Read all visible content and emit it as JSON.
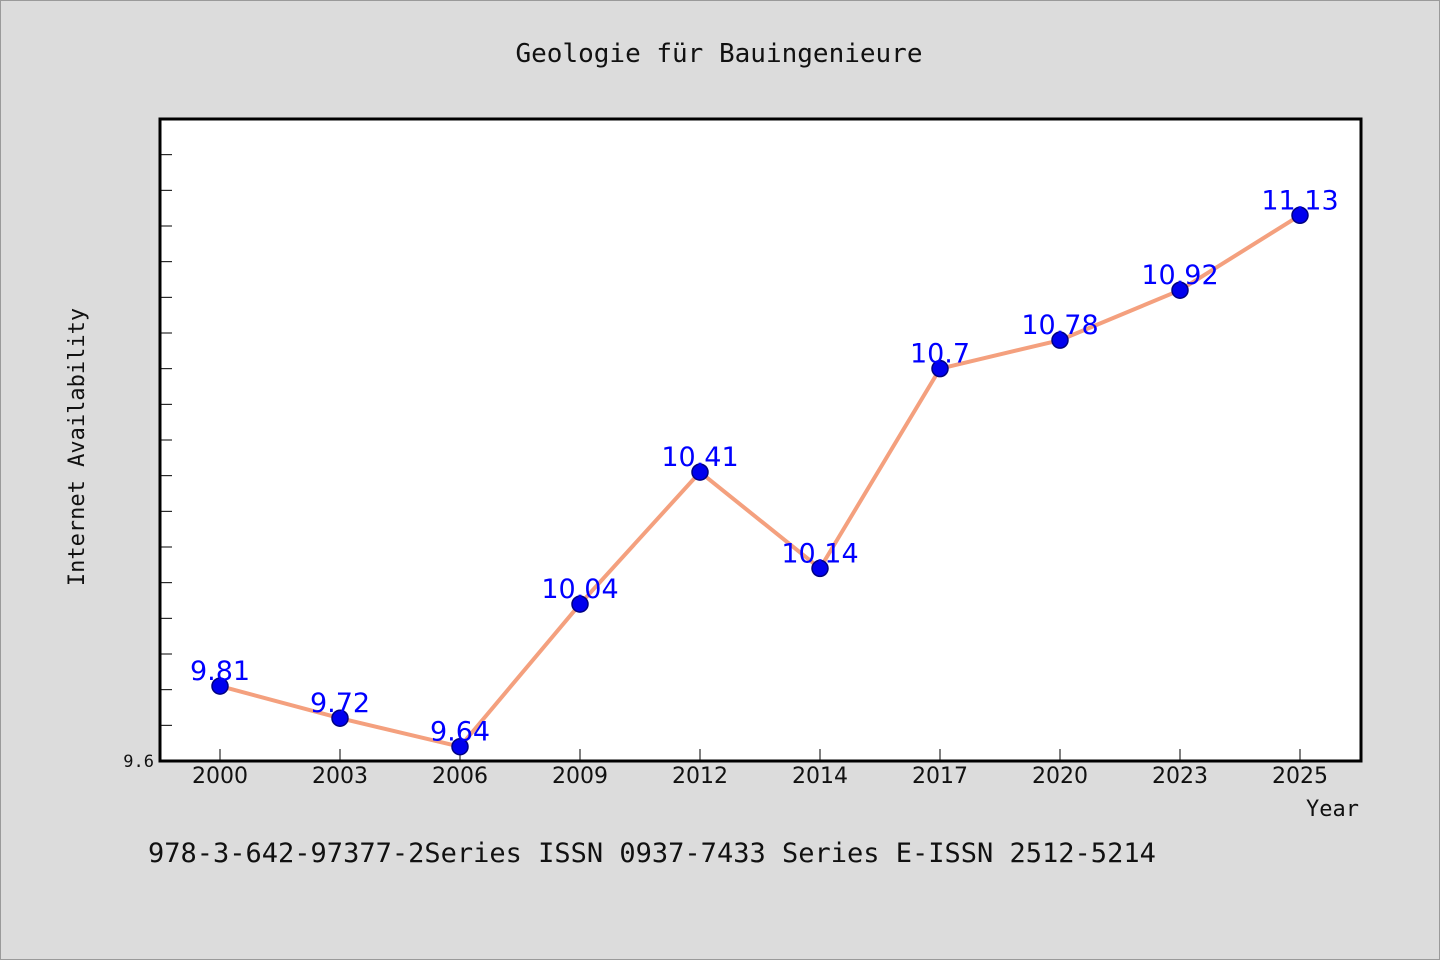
{
  "chart_data": {
    "type": "line",
    "title": "Geologie für Bauingenieure",
    "xlabel": "Year",
    "ylabel": "Internet Availability",
    "categories": [
      "2000",
      "2003",
      "2006",
      "2009",
      "2012",
      "2014",
      "2017",
      "2020",
      "2023",
      "2025"
    ],
    "series": [
      {
        "values": [
          9.81,
          9.72,
          9.64,
          10.04,
          10.41,
          10.14,
          10.7,
          10.78,
          10.92,
          11.13
        ],
        "data_labels": [
          "9.81",
          "9.72",
          "9.64",
          "10.04",
          "10.41",
          "10.14",
          "10.7",
          "10.78",
          "10.92",
          "11.13"
        ]
      }
    ],
    "ylim": [
      9.6,
      11.4
    ],
    "ytick_labels": [
      "9.6"
    ],
    "grid": false,
    "legend": "none",
    "colors": {
      "line": "#f4a07e",
      "marker": "#0000ee",
      "marker_edge": "#000080",
      "data_label": "#0000ff",
      "plot_background": "#ffffff",
      "page_background": "#dcdcdc"
    }
  },
  "caption": "978-3-642-97377-2Series ISSN 0937-7433 Series E-ISSN 2512-5214"
}
